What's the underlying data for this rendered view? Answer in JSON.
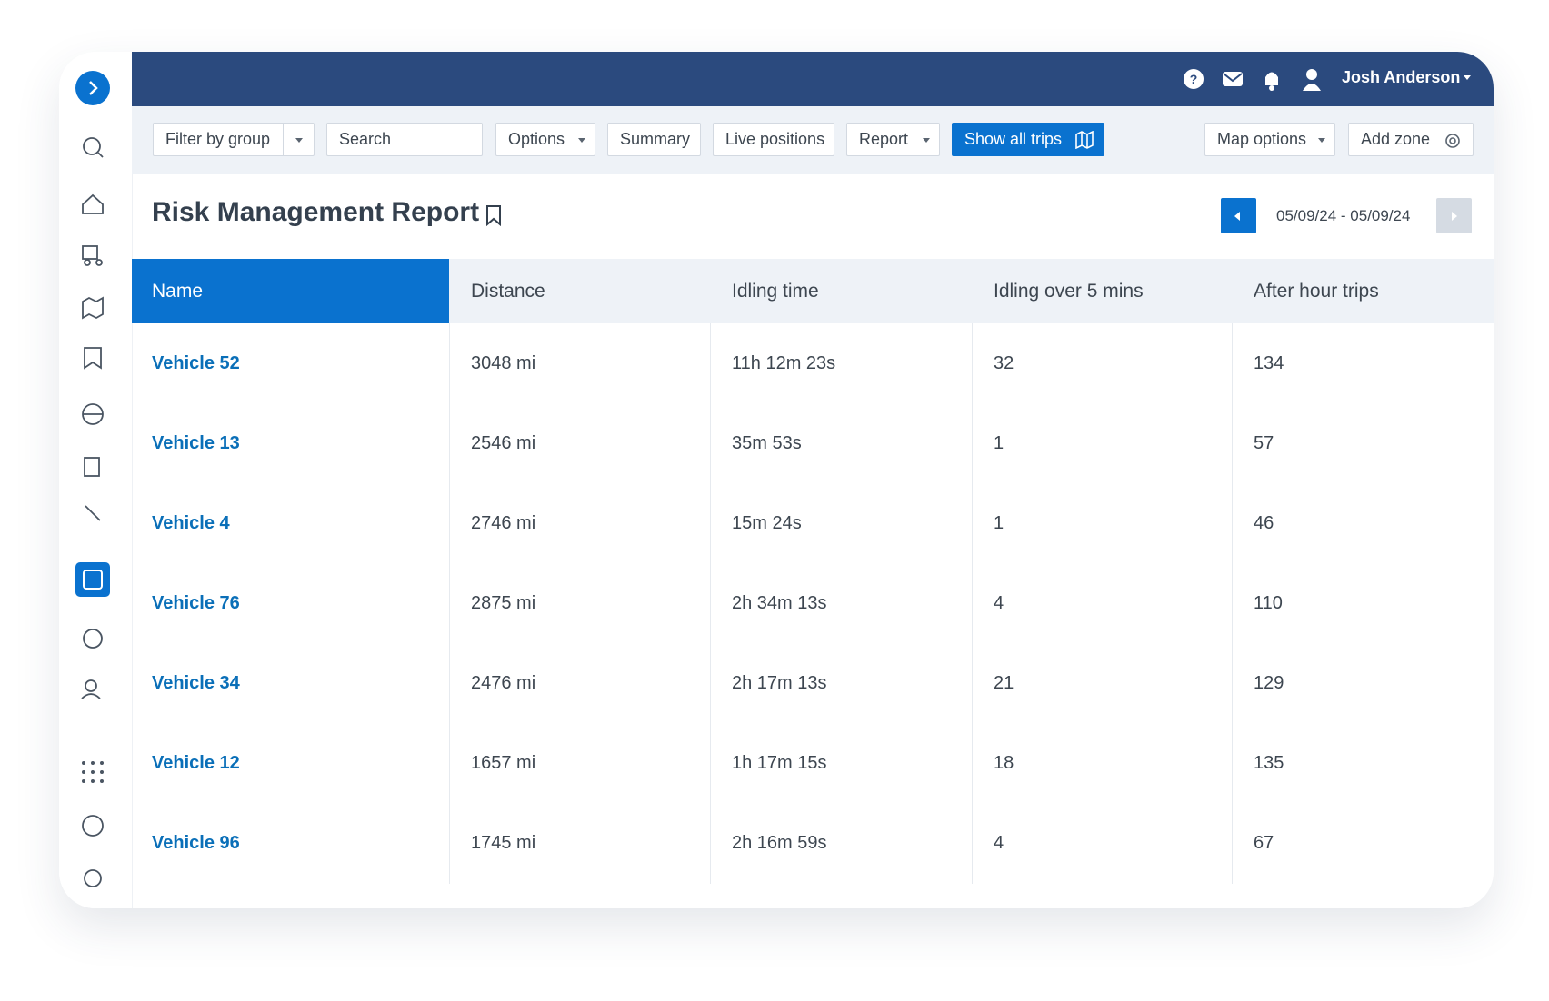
{
  "header": {
    "user": "Josh Anderson"
  },
  "toolbar": [
    "Filter by group",
    "Search",
    "Options",
    "Summary",
    "Live positions",
    "Report",
    "Show all trips",
    "Map options",
    "Add zone"
  ],
  "report": {
    "title": "Risk Management Report",
    "date_range": "05/09/24 - 05/09/24"
  },
  "table": {
    "columns": [
      "Name",
      "Distance",
      "Idling time",
      "Idling over 5 mins",
      "After hour trips"
    ],
    "rows": [
      [
        "Vehicle 52",
        "3048 mi",
        "11h 12m 23s",
        "32",
        "134"
      ],
      [
        "Vehicle 13",
        "2546 mi",
        "35m 53s",
        "1",
        "57"
      ],
      [
        "Vehicle 4",
        "2746 mi",
        "15m 24s",
        "1",
        "46"
      ],
      [
        "Vehicle 76",
        "2875 mi",
        "2h 34m 13s",
        "4",
        "110"
      ],
      [
        "Vehicle 34",
        "2476 mi",
        "2h 17m 13s",
        "21",
        "129"
      ],
      [
        "Vehicle 12",
        "1657 mi",
        "1h 17m 15s",
        "18",
        "135"
      ],
      [
        "Vehicle 96",
        "1745 mi",
        "2h 16m 59s",
        "4",
        "67"
      ]
    ]
  }
}
